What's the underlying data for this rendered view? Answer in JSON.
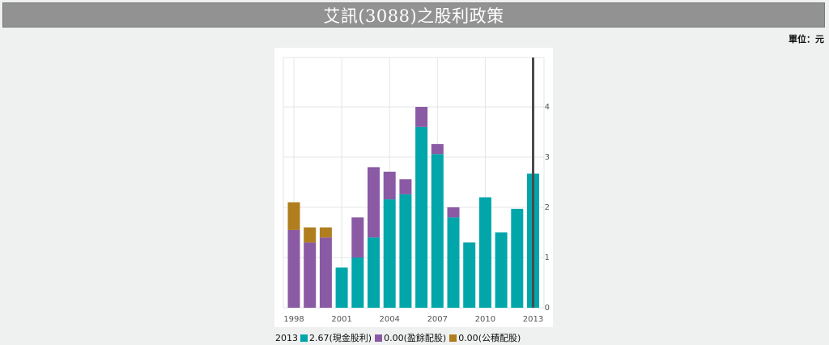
{
  "page": {
    "title": "艾訊(3088)之股利政策",
    "unit_label": "單位：元"
  },
  "colors": {
    "cash": "#00a6aa",
    "earnings_stock": "#8a5aa5",
    "capital_stock": "#b07d1f",
    "cursor": "#4a4a4a",
    "grid": "#e3e6e8"
  },
  "legend": {
    "year": "2013",
    "items": [
      {
        "value": "2.67",
        "label": "(現金股利)",
        "color": "#00a6aa"
      },
      {
        "value": "0.00",
        "label": "(盈餘配股)",
        "color": "#8a5aa5"
      },
      {
        "value": "0.00",
        "label": "(公積配股)",
        "color": "#b07d1f"
      }
    ]
  },
  "chart_data": {
    "type": "bar",
    "stacked": true,
    "x": [
      1998,
      1999,
      2000,
      2001,
      2002,
      2003,
      2004,
      2005,
      2006,
      2007,
      2008,
      2009,
      2010,
      2011,
      2012,
      2013
    ],
    "x_tick_labels": [
      "1998",
      "2001",
      "2004",
      "2007",
      "2010",
      "2013"
    ],
    "y_tick_labels": [
      "0",
      "1",
      "2",
      "3",
      "4"
    ],
    "ylim": [
      0,
      5
    ],
    "y_axis_side": "right",
    "grid": true,
    "highlighted_x": 2013,
    "series": [
      {
        "name": "現金股利",
        "color": "#00a6aa",
        "values": [
          0,
          0,
          0,
          0.8,
          1.0,
          1.4,
          2.16,
          2.26,
          3.6,
          3.06,
          1.8,
          1.3,
          2.2,
          1.5,
          1.97,
          2.67
        ]
      },
      {
        "name": "盈餘配股",
        "color": "#8a5aa5",
        "values": [
          1.55,
          1.3,
          1.4,
          0,
          0.8,
          1.4,
          0.55,
          0.3,
          0.4,
          0.2,
          0.2,
          0,
          0,
          0,
          0,
          0
        ]
      },
      {
        "name": "公積配股",
        "color": "#b07d1f",
        "values": [
          0.55,
          0.3,
          0.2,
          0,
          0,
          0,
          0,
          0,
          0,
          0,
          0,
          0,
          0,
          0,
          0,
          0
        ]
      }
    ]
  }
}
